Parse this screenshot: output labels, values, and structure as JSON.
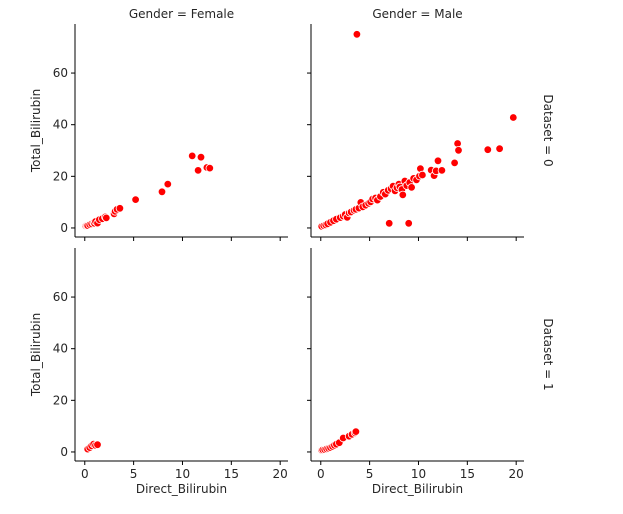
{
  "chart_data": {
    "type": "scatter",
    "xlabel": "Direct_Bilirubin",
    "ylabel": "Total_Bilirubin",
    "xlim": [
      -1,
      20.8
    ],
    "ylim": [
      -3.5,
      79
    ],
    "xticks": [
      0,
      5,
      10,
      15,
      20
    ],
    "yticks": [
      0,
      20,
      40,
      60
    ],
    "grid": false,
    "marker_color": "#ff0000",
    "marker_edge": "#ffffff",
    "col_titles": [
      "Gender = Female",
      "Gender = Male"
    ],
    "row_titles": [
      "Dataset = 0",
      "Dataset = 1"
    ],
    "panels": [
      {
        "col_title": "Gender = Female",
        "row_title": "Dataset = 0",
        "points": [
          [
            0.1,
            0.8
          ],
          [
            0.2,
            1.0
          ],
          [
            0.3,
            0.9
          ],
          [
            0.5,
            1.3
          ],
          [
            0.7,
            1.6
          ],
          [
            0.9,
            2.0
          ],
          [
            1.0,
            1.8
          ],
          [
            1.1,
            2.5
          ],
          [
            1.3,
            1.9
          ],
          [
            1.5,
            3.2
          ],
          [
            1.8,
            3.6
          ],
          [
            2.1,
            4.3
          ],
          [
            2.2,
            3.9
          ],
          [
            3.0,
            5.5
          ],
          [
            3.1,
            6.4
          ],
          [
            3.3,
            7.2
          ],
          [
            3.6,
            7.6
          ],
          [
            5.2,
            11.0
          ],
          [
            7.9,
            14.0
          ],
          [
            8.5,
            17.0
          ],
          [
            11.0,
            27.9
          ],
          [
            11.6,
            22.3
          ],
          [
            11.9,
            27.4
          ],
          [
            12.5,
            23.4
          ],
          [
            12.8,
            23.2
          ]
        ]
      },
      {
        "col_title": "Gender = Male",
        "row_title": "Dataset = 0",
        "points": [
          [
            0.1,
            0.6
          ],
          [
            0.3,
            0.9
          ],
          [
            0.5,
            1.2
          ],
          [
            0.7,
            1.6
          ],
          [
            1.0,
            2.2
          ],
          [
            1.3,
            2.8
          ],
          [
            1.6,
            3.4
          ],
          [
            2.0,
            4.0
          ],
          [
            2.3,
            4.6
          ],
          [
            2.5,
            5.2
          ],
          [
            2.7,
            4.1
          ],
          [
            2.9,
            5.8
          ],
          [
            3.1,
            6.2
          ],
          [
            3.4,
            6.8
          ],
          [
            3.6,
            7.2
          ],
          [
            3.7,
            75.0
          ],
          [
            3.9,
            7.7
          ],
          [
            4.1,
            9.9
          ],
          [
            4.3,
            8.2
          ],
          [
            4.6,
            8.8
          ],
          [
            4.9,
            9.5
          ],
          [
            5.1,
            10.1
          ],
          [
            5.3,
            11.2
          ],
          [
            5.6,
            11.6
          ],
          [
            5.8,
            10.8
          ],
          [
            6.1,
            12.2
          ],
          [
            6.4,
            13.8
          ],
          [
            6.6,
            13.1
          ],
          [
            6.9,
            14.6
          ],
          [
            7.0,
            1.8
          ],
          [
            7.2,
            15.2
          ],
          [
            7.4,
            16.2
          ],
          [
            7.6,
            14.4
          ],
          [
            7.8,
            15.6
          ],
          [
            8.0,
            17.0
          ],
          [
            8.1,
            15.9
          ],
          [
            8.3,
            14.9
          ],
          [
            8.4,
            12.8
          ],
          [
            8.6,
            18.2
          ],
          [
            8.8,
            16.4
          ],
          [
            9.0,
            1.8
          ],
          [
            9.1,
            17.6
          ],
          [
            9.3,
            15.7
          ],
          [
            9.5,
            19.2
          ],
          [
            9.8,
            18.6
          ],
          [
            10.1,
            20.1
          ],
          [
            10.2,
            23.0
          ],
          [
            10.4,
            20.5
          ],
          [
            11.3,
            22.4
          ],
          [
            11.6,
            20.3
          ],
          [
            11.8,
            22.1
          ],
          [
            12.0,
            26.0
          ],
          [
            12.4,
            22.3
          ],
          [
            13.7,
            25.2
          ],
          [
            14.0,
            32.7
          ],
          [
            14.1,
            30.1
          ],
          [
            17.1,
            30.3
          ],
          [
            18.3,
            30.7
          ],
          [
            19.7,
            42.8
          ]
        ]
      },
      {
        "col_title": "Gender = Female",
        "row_title": "Dataset = 1",
        "points": [
          [
            0.3,
            1.1
          ],
          [
            0.5,
            1.7
          ],
          [
            0.7,
            2.4
          ],
          [
            0.9,
            3.0
          ],
          [
            1.1,
            2.6
          ],
          [
            1.3,
            2.8
          ]
        ]
      },
      {
        "col_title": "Gender = Male",
        "row_title": "Dataset = 1",
        "points": [
          [
            0.1,
            0.6
          ],
          [
            0.2,
            0.8
          ],
          [
            0.4,
            0.9
          ],
          [
            0.6,
            1.2
          ],
          [
            0.8,
            1.4
          ],
          [
            1.0,
            1.7
          ],
          [
            1.2,
            2.1
          ],
          [
            1.4,
            2.6
          ],
          [
            1.6,
            3.0
          ],
          [
            1.9,
            3.6
          ],
          [
            2.3,
            5.4
          ],
          [
            2.9,
            6.1
          ],
          [
            3.2,
            6.8
          ],
          [
            3.5,
            7.4
          ],
          [
            3.6,
            7.9
          ]
        ]
      }
    ]
  }
}
